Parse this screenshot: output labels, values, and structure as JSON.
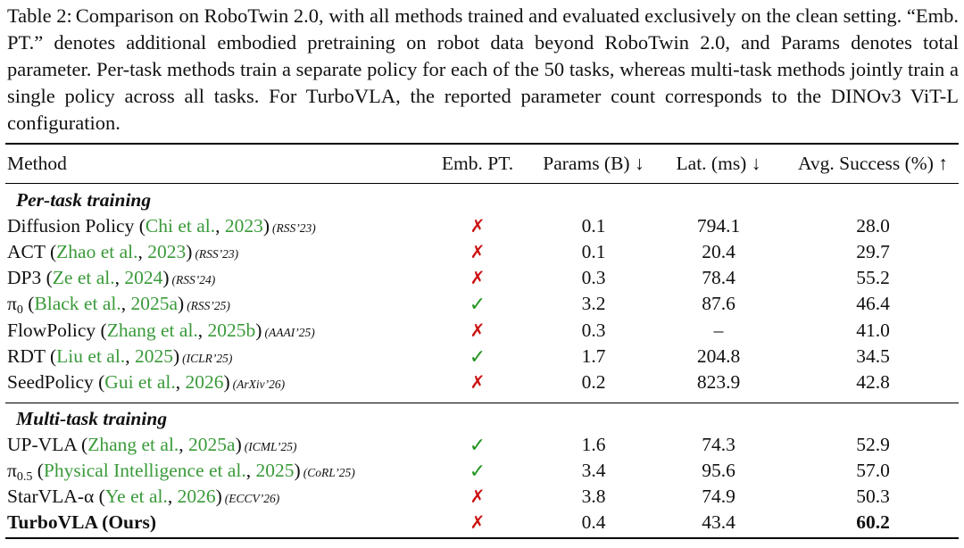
{
  "caption": {
    "label": "Table 2:",
    "text": "Comparison on RoboTwin 2.0, with all methods trained and evaluated exclusively on the clean setting. “Emb. PT.” denotes additional embodied pretraining on robot data beyond RoboTwin 2.0, and Params denotes total parameter. Per-task methods train a separate policy for each of the 50 tasks, whereas multi-task methods jointly train a single policy across all tasks. For TurboVLA, the reported parameter count corresponds to the DINOv3 ViT-L configuration."
  },
  "headers": {
    "method": "Method",
    "emb": "Emb. PT.",
    "params": "Params (B) ↓",
    "lat": "Lat. (ms) ↓",
    "avg": "Avg. Success (%) ↑"
  },
  "colors": {
    "cite": "#3a9a3a",
    "cross": "#cc1111",
    "check": "#22941f"
  },
  "sections": [
    {
      "label": "Per-task training",
      "rows": [
        {
          "name": "Diffusion Policy",
          "sub": "",
          "cite_open": "(",
          "cite_author": "Chi et al.",
          "cite_sep": ", ",
          "cite_year": "2023",
          "cite_close": ")",
          "venue": "(RSS’23)",
          "emb": "✗",
          "params": "0.1",
          "lat": "794.1",
          "avg": "28.0"
        },
        {
          "name": "ACT",
          "sub": "",
          "cite_open": "(",
          "cite_author": "Zhao et al.",
          "cite_sep": ", ",
          "cite_year": "2023",
          "cite_close": ")",
          "venue": "(RSS’23)",
          "emb": "✗",
          "params": "0.1",
          "lat": "20.4",
          "avg": "29.7"
        },
        {
          "name": "DP3",
          "sub": "",
          "cite_open": "(",
          "cite_author": "Ze et al.",
          "cite_sep": ", ",
          "cite_year": "2024",
          "cite_close": ")",
          "venue": "(RSS’24)",
          "emb": "✗",
          "params": "0.3",
          "lat": "78.4",
          "avg": "55.2"
        },
        {
          "name": "π",
          "sub": "0",
          "cite_open": "(",
          "cite_author": "Black et al.",
          "cite_sep": ", ",
          "cite_year": "2025a",
          "cite_close": ")",
          "venue": "(RSS’25)",
          "emb": "✓",
          "params": "3.2",
          "lat": "87.6",
          "avg": "46.4"
        },
        {
          "name": "FlowPolicy",
          "sub": "",
          "cite_open": "(",
          "cite_author": "Zhang et al.",
          "cite_sep": ", ",
          "cite_year": "2025b",
          "cite_close": ")",
          "venue": "(AAAI’25)",
          "emb": "✗",
          "params": "0.3",
          "lat": "–",
          "avg": "41.0"
        },
        {
          "name": "RDT",
          "sub": "",
          "cite_open": "(",
          "cite_author": "Liu et al.",
          "cite_sep": ", ",
          "cite_year": "2025",
          "cite_close": ")",
          "venue": "(ICLR’25)",
          "emb": "✓",
          "params": "1.7",
          "lat": "204.8",
          "avg": "34.5"
        },
        {
          "name": "SeedPolicy",
          "sub": "",
          "cite_open": "(",
          "cite_author": "Gui et al.",
          "cite_sep": ", ",
          "cite_year": "2026",
          "cite_close": ")",
          "venue": "(ArXiv’26)",
          "emb": "✗",
          "params": "0.2",
          "lat": "823.9",
          "avg": "42.8"
        }
      ]
    },
    {
      "label": "Multi-task training",
      "rows": [
        {
          "name": "UP-VLA",
          "sub": "",
          "cite_open": "(",
          "cite_author": "Zhang et al.",
          "cite_sep": ", ",
          "cite_year": "2025a",
          "cite_close": ")",
          "venue": "(ICML’25)",
          "emb": "✓",
          "params": "1.6",
          "lat": "74.3",
          "avg": "52.9"
        },
        {
          "name": "π",
          "sub": "0.5",
          "cite_open": "(",
          "cite_author": "Physical Intelligence et al.",
          "cite_sep": ", ",
          "cite_year": "2025",
          "cite_close": ")",
          "venue": "(CoRL’25)",
          "emb": "✓",
          "params": "3.4",
          "lat": "95.6",
          "avg": "57.0"
        },
        {
          "name": "StarVLA-α",
          "sub": "",
          "cite_open": "(",
          "cite_author": "Ye et al.",
          "cite_sep": ", ",
          "cite_year": "2026",
          "cite_close": ")",
          "venue": "(ECCV’26)",
          "emb": "✗",
          "params": "3.8",
          "lat": "74.9",
          "avg": "50.3"
        },
        {
          "name": "TurboVLA (Ours)",
          "sub": "",
          "cite_open": "",
          "cite_author": "",
          "cite_sep": "",
          "cite_year": "",
          "cite_close": "",
          "venue": "",
          "emb": "✗",
          "params": "0.4",
          "lat": "43.4",
          "avg": "60.2",
          "bold": true
        }
      ]
    }
  ]
}
